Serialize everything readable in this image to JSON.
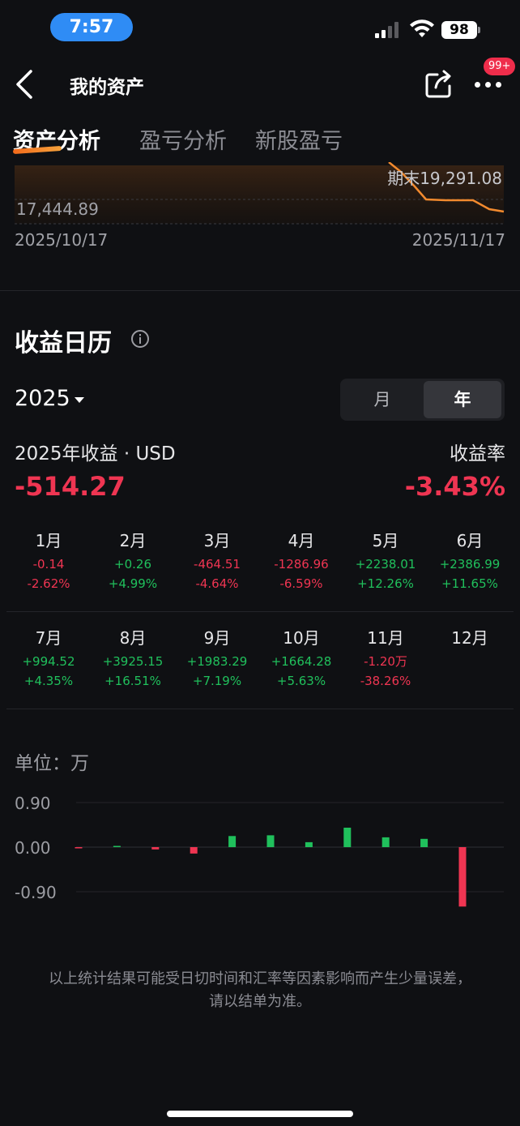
{
  "status_bar": {
    "time": "7:57",
    "battery": "98"
  },
  "nav": {
    "title": "我的资产",
    "badge": "99+"
  },
  "tabs": [
    {
      "label": "资产分析",
      "active": true
    },
    {
      "label": "盈亏分析",
      "active": false
    },
    {
      "label": "新股盈亏",
      "active": false
    }
  ],
  "asset_chart": {
    "end_label": "期末19,291.08",
    "start_value": "17,444.89",
    "start_date": "2025/10/17",
    "end_date": "2025/11/17",
    "line_color": "#f28a2e"
  },
  "calendar": {
    "title": "收益日历",
    "year": "2025",
    "segments": [
      {
        "label": "月",
        "active": false
      },
      {
        "label": "年",
        "active": true
      }
    ],
    "summary_label": "2025年收益 · USD",
    "summary_value": "-514.27",
    "rate_label": "收益率",
    "rate_value": "-3.43%"
  },
  "months": [
    {
      "name": "1月",
      "pnl": "-0.14",
      "pct": "-2.62%",
      "sign": "neg"
    },
    {
      "name": "2月",
      "pnl": "+0.26",
      "pct": "+4.99%",
      "sign": "pos"
    },
    {
      "name": "3月",
      "pnl": "-464.51",
      "pct": "-4.64%",
      "sign": "neg"
    },
    {
      "name": "4月",
      "pnl": "-1286.96",
      "pct": "-6.59%",
      "sign": "neg"
    },
    {
      "name": "5月",
      "pnl": "+2238.01",
      "pct": "+12.26%",
      "sign": "pos"
    },
    {
      "name": "6月",
      "pnl": "+2386.99",
      "pct": "+11.65%",
      "sign": "pos"
    },
    {
      "name": "7月",
      "pnl": "+994.52",
      "pct": "+4.35%",
      "sign": "pos"
    },
    {
      "name": "8月",
      "pnl": "+3925.15",
      "pct": "+16.51%",
      "sign": "pos"
    },
    {
      "name": "9月",
      "pnl": "+1983.29",
      "pct": "+7.19%",
      "sign": "pos"
    },
    {
      "name": "10月",
      "pnl": "+1664.28",
      "pct": "+5.63%",
      "sign": "pos"
    },
    {
      "name": "11月",
      "pnl": "-1.20万",
      "pct": "-38.26%",
      "sign": "neg"
    },
    {
      "name": "12月",
      "pnl": "",
      "pct": "",
      "sign": ""
    }
  ],
  "unit_label": "单位：万",
  "chart_data": {
    "type": "bar",
    "ylabel": "万",
    "ylim": [
      -0.9,
      0.9
    ],
    "yticks": [
      "0.90",
      "0.00",
      "-0.90"
    ],
    "values": [
      -1e-05,
      3e-05,
      -0.0465,
      -0.1287,
      0.2238,
      0.2387,
      0.0995,
      0.3925,
      0.1983,
      0.1664,
      -1.2
    ],
    "colors": {
      "positive": "#20c05c",
      "negative": "#ef3552"
    },
    "grid": true
  },
  "footnote": {
    "line1": "以上统计结果可能受日切时间和汇率等因素影响而产生少量误差，",
    "line2": "请以结单为准。"
  }
}
